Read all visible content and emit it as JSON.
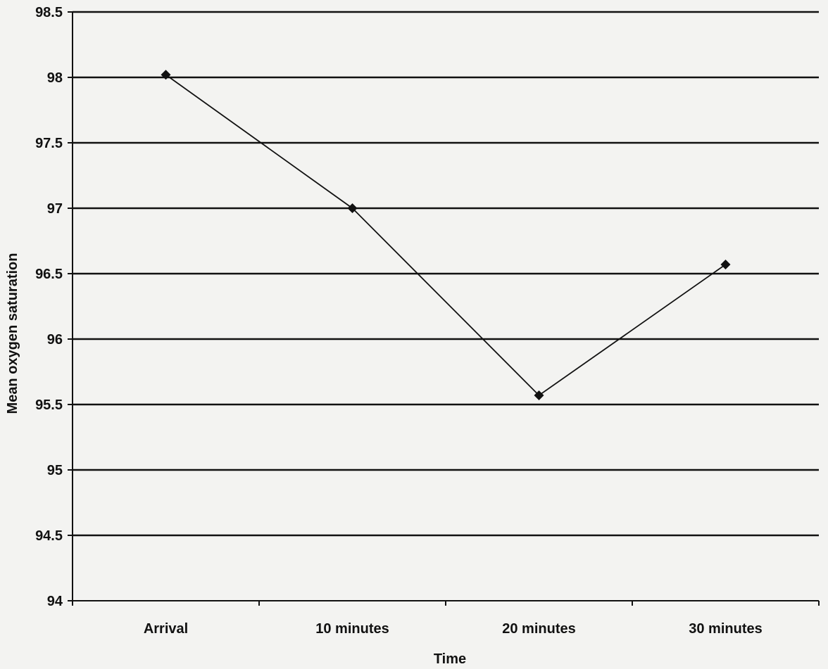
{
  "chart_data": {
    "type": "line",
    "title": "",
    "xlabel": "Time",
    "ylabel": "Mean oxygen saturation",
    "categories": [
      "Arrival",
      "10 minutes",
      "20 minutes",
      "30 minutes"
    ],
    "ylim": [
      94,
      98.5
    ],
    "yticks": [
      "94",
      "94.5",
      "95",
      "95.5",
      "96",
      "96.5",
      "97",
      "97.5",
      "98",
      "98.5"
    ],
    "grid": true,
    "legend": "none",
    "series": [
      {
        "values": [
          98.02,
          97.0,
          95.57,
          96.57
        ],
        "color": "#111111",
        "marker": "diamond"
      }
    ]
  }
}
